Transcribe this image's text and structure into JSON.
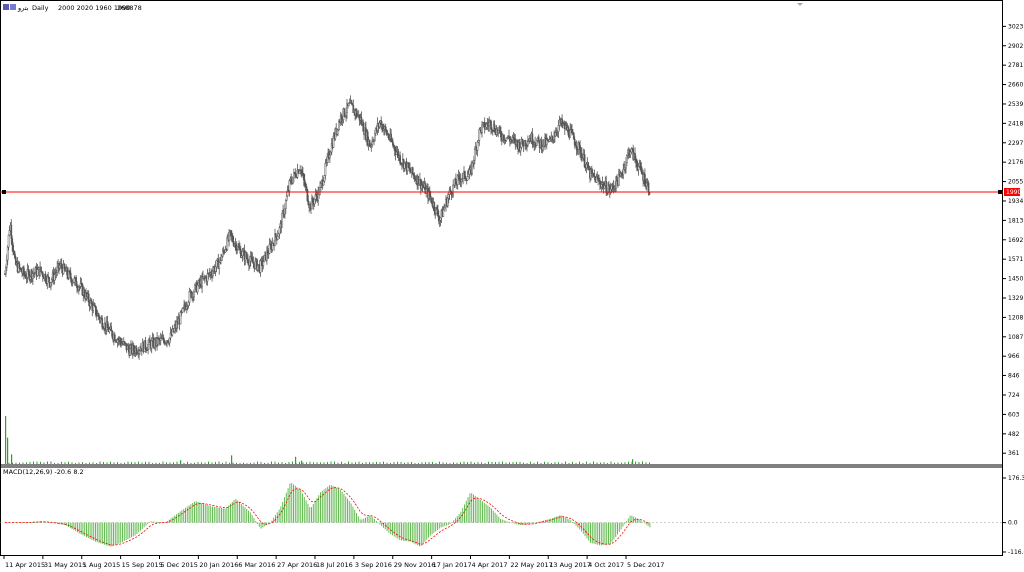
{
  "header": {
    "symbol": "بترو",
    "timeframe": "Daily",
    "ohlc": "2000 2020 1960 1990",
    "volume": "268878"
  },
  "chart_data": [
    {
      "type": "candlestick",
      "name": "price",
      "ylim": [
        300,
        3100
      ],
      "y_ticks": [
        3023,
        2902,
        2781,
        2660,
        2539,
        2418,
        2297,
        2176,
        2055,
        1934,
        1813,
        1692,
        1571,
        1450,
        1329,
        1208,
        1087,
        966,
        846,
        724,
        603,
        482,
        361
      ],
      "current_price": {
        "value": 1990,
        "label": "1990",
        "color": "#ff0000"
      },
      "x_labels": [
        "11 Apr 2015",
        "31 May 2015",
        "1 Aug 2015",
        "15 Sep 2015",
        "5 Dec 2015",
        "20 Jan 2016",
        "6 Mar 2016",
        "27 Apr 2016",
        "18 Jul 2016",
        "3 Sep 2016",
        "29 Nov 2016",
        "17 Jan 2017",
        "4 Apr 2017",
        "22 May 2017",
        "13 Aug 2017",
        "4 Oct 2017",
        "5 Dec 2017"
      ],
      "series_points": [
        {
          "t": 0.0,
          "v": 1480
        },
        {
          "t": 0.5,
          "v": 1800
        },
        {
          "t": 1.0,
          "v": 1540
        },
        {
          "t": 2.0,
          "v": 1470
        },
        {
          "t": 3.5,
          "v": 1500
        },
        {
          "t": 4.5,
          "v": 1430
        },
        {
          "t": 5.5,
          "v": 1530
        },
        {
          "t": 6.5,
          "v": 1460
        },
        {
          "t": 7.5,
          "v": 1400
        },
        {
          "t": 8.5,
          "v": 1300
        },
        {
          "t": 9.5,
          "v": 1200
        },
        {
          "t": 10.5,
          "v": 1120
        },
        {
          "t": 11.5,
          "v": 1060
        },
        {
          "t": 12.5,
          "v": 1000
        },
        {
          "t": 13.5,
          "v": 1020
        },
        {
          "t": 14.5,
          "v": 1040
        },
        {
          "t": 15.5,
          "v": 1060
        },
        {
          "t": 16.5,
          "v": 1080
        },
        {
          "t": 17.5,
          "v": 1200
        },
        {
          "t": 18.5,
          "v": 1350
        },
        {
          "t": 19.5,
          "v": 1420
        },
        {
          "t": 20.5,
          "v": 1480
        },
        {
          "t": 21.5,
          "v": 1560
        },
        {
          "t": 22.5,
          "v": 1720
        },
        {
          "t": 23.5,
          "v": 1620
        },
        {
          "t": 24.5,
          "v": 1560
        },
        {
          "t": 25.5,
          "v": 1520
        },
        {
          "t": 26.5,
          "v": 1640
        },
        {
          "t": 27.5,
          "v": 1760
        },
        {
          "t": 28.5,
          "v": 2050
        },
        {
          "t": 29.5,
          "v": 2150
        },
        {
          "t": 30.5,
          "v": 1900
        },
        {
          "t": 31.5,
          "v": 2000
        },
        {
          "t": 32.5,
          "v": 2250
        },
        {
          "t": 33.5,
          "v": 2450
        },
        {
          "t": 34.5,
          "v": 2530
        },
        {
          "t": 35.5,
          "v": 2450
        },
        {
          "t": 36.5,
          "v": 2280
        },
        {
          "t": 37.5,
          "v": 2430
        },
        {
          "t": 38.5,
          "v": 2320
        },
        {
          "t": 39.5,
          "v": 2200
        },
        {
          "t": 40.5,
          "v": 2120
        },
        {
          "t": 41.5,
          "v": 2050
        },
        {
          "t": 42.5,
          "v": 1960
        },
        {
          "t": 43.5,
          "v": 1820
        },
        {
          "t": 44.5,
          "v": 1990
        },
        {
          "t": 45.5,
          "v": 2080
        },
        {
          "t": 46.5,
          "v": 2100
        },
        {
          "t": 47.5,
          "v": 2380
        },
        {
          "t": 48.5,
          "v": 2420
        },
        {
          "t": 49.5,
          "v": 2350
        },
        {
          "t": 50.5,
          "v": 2320
        },
        {
          "t": 51.5,
          "v": 2280
        },
        {
          "t": 52.5,
          "v": 2330
        },
        {
          "t": 53.5,
          "v": 2290
        },
        {
          "t": 54.5,
          "v": 2300
        },
        {
          "t": 55.5,
          "v": 2420
        },
        {
          "t": 56.5,
          "v": 2360
        },
        {
          "t": 57.5,
          "v": 2250
        },
        {
          "t": 58.5,
          "v": 2100
        },
        {
          "t": 59.5,
          "v": 2050
        },
        {
          "t": 60.5,
          "v": 2000
        },
        {
          "t": 61.5,
          "v": 2080
        },
        {
          "t": 62.5,
          "v": 2260
        },
        {
          "t": 63.5,
          "v": 2130
        },
        {
          "t": 64.5,
          "v": 2000
        }
      ],
      "ohlc_last": {
        "open": 2000,
        "high": 2020,
        "low": 1960,
        "close": 1990
      }
    },
    {
      "type": "bar",
      "name": "volume",
      "note_bars": [
        {
          "t": 0.0,
          "v": 1.0
        },
        {
          "t": 0.2,
          "v": 0.55
        },
        {
          "t": 0.6,
          "v": 0.2
        },
        {
          "t": 22.6,
          "v": 0.18
        },
        {
          "t": 17.5,
          "v": 0.08
        },
        {
          "t": 29.0,
          "v": 0.15
        },
        {
          "t": 29.6,
          "v": 0.07
        },
        {
          "t": 62.7,
          "v": 0.1
        }
      ]
    },
    {
      "type": "histogram+line",
      "name": "MACD",
      "label": "MACD(12,26,9) -20.6 8.2",
      "ylim": [
        -116.0,
        176.3
      ],
      "y_ticks": [
        176.3,
        0.0,
        -116.0
      ],
      "histogram": [
        {
          "t": 0,
          "v": 0
        },
        {
          "t": 2,
          "v": 0
        },
        {
          "t": 3.5,
          "v": 5
        },
        {
          "t": 4.5,
          "v": 0
        },
        {
          "t": 6,
          "v": -10
        },
        {
          "t": 7.5,
          "v": -45
        },
        {
          "t": 9,
          "v": -75
        },
        {
          "t": 10.5,
          "v": -95
        },
        {
          "t": 11.5,
          "v": -80
        },
        {
          "t": 13,
          "v": -50
        },
        {
          "t": 14.5,
          "v": 5
        },
        {
          "t": 16,
          "v": 0
        },
        {
          "t": 17.5,
          "v": 45
        },
        {
          "t": 19,
          "v": 85
        },
        {
          "t": 20.5,
          "v": 65
        },
        {
          "t": 22,
          "v": 55
        },
        {
          "t": 23,
          "v": 95
        },
        {
          "t": 24.5,
          "v": 40
        },
        {
          "t": 25.5,
          "v": -25
        },
        {
          "t": 26.5,
          "v": 0
        },
        {
          "t": 27.5,
          "v": 60
        },
        {
          "t": 28.5,
          "v": 160
        },
        {
          "t": 29.5,
          "v": 130
        },
        {
          "t": 30.5,
          "v": 55
        },
        {
          "t": 31.5,
          "v": 120
        },
        {
          "t": 32.5,
          "v": 150
        },
        {
          "t": 33.5,
          "v": 130
        },
        {
          "t": 34.5,
          "v": 80
        },
        {
          "t": 35.5,
          "v": 10
        },
        {
          "t": 36.5,
          "v": 30
        },
        {
          "t": 37.5,
          "v": -10
        },
        {
          "t": 38.5,
          "v": -45
        },
        {
          "t": 39.5,
          "v": -70
        },
        {
          "t": 40.5,
          "v": -75
        },
        {
          "t": 41.5,
          "v": -95
        },
        {
          "t": 42.5,
          "v": -50
        },
        {
          "t": 43.5,
          "v": -20
        },
        {
          "t": 44.5,
          "v": -5
        },
        {
          "t": 45.5,
          "v": 40
        },
        {
          "t": 46.5,
          "v": 120
        },
        {
          "t": 47.5,
          "v": 90
        },
        {
          "t": 48.5,
          "v": 60
        },
        {
          "t": 49.5,
          "v": 15
        },
        {
          "t": 50.5,
          "v": 0
        },
        {
          "t": 51.5,
          "v": -10
        },
        {
          "t": 52.5,
          "v": -5
        },
        {
          "t": 53.5,
          "v": 5
        },
        {
          "t": 54.5,
          "v": 15
        },
        {
          "t": 55.5,
          "v": 30
        },
        {
          "t": 56.5,
          "v": 10
        },
        {
          "t": 57.5,
          "v": -30
        },
        {
          "t": 58.5,
          "v": -80
        },
        {
          "t": 59.5,
          "v": -90
        },
        {
          "t": 60.5,
          "v": -85
        },
        {
          "t": 61.5,
          "v": -30
        },
        {
          "t": 62.5,
          "v": 30
        },
        {
          "t": 63.5,
          "v": 10
        },
        {
          "t": 64.5,
          "v": -20
        }
      ]
    }
  ],
  "colors": {
    "candle": "#555555",
    "current_line": "#ff0000",
    "volume": "#2ca02c",
    "macd_hist": "#66bb55",
    "macd_signal": "#ff0000",
    "zero_line": "#a0a0a0"
  }
}
